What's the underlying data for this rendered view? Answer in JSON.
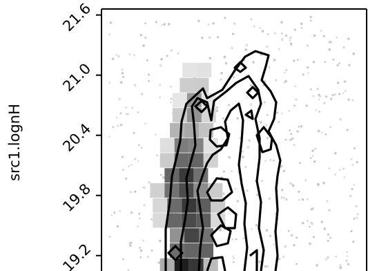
{
  "chart_data": {
    "type": "heatmap",
    "title": "",
    "xlabel": "",
    "ylabel": "src1.lognH",
    "ylim": [
      19.05,
      21.66
    ],
    "yticks": [
      19.2,
      19.8,
      20.4,
      21.0,
      21.6
    ],
    "ytick_labels": [
      "19.2",
      "19.8",
      "20.4",
      "21.0",
      "21.6"
    ],
    "grid": false,
    "colormap": "greys",
    "overlay": [
      "scatter",
      "density-contours"
    ],
    "density_profile": [
      {
        "y": 19.1,
        "x_center": 0.33,
        "x_width": 0.1,
        "density": 0.95
      },
      {
        "y": 19.25,
        "x_center": 0.34,
        "x_width": 0.11,
        "density": 0.85
      },
      {
        "y": 19.4,
        "x_center": 0.34,
        "x_width": 0.11,
        "density": 0.8
      },
      {
        "y": 19.55,
        "x_center": 0.33,
        "x_width": 0.12,
        "density": 0.75
      },
      {
        "y": 19.7,
        "x_center": 0.33,
        "x_width": 0.12,
        "density": 0.78
      },
      {
        "y": 19.85,
        "x_center": 0.32,
        "x_width": 0.12,
        "density": 0.8
      },
      {
        "y": 20.0,
        "x_center": 0.32,
        "x_width": 0.11,
        "density": 0.7
      },
      {
        "y": 20.15,
        "x_center": 0.33,
        "x_width": 0.1,
        "density": 0.6
      },
      {
        "y": 20.3,
        "x_center": 0.33,
        "x_width": 0.09,
        "density": 0.5
      },
      {
        "y": 20.45,
        "x_center": 0.34,
        "x_width": 0.08,
        "density": 0.45
      },
      {
        "y": 20.6,
        "x_center": 0.35,
        "x_width": 0.07,
        "density": 0.4
      },
      {
        "y": 20.75,
        "x_center": 0.35,
        "x_width": 0.06,
        "density": 0.35
      },
      {
        "y": 20.9,
        "x_center": 0.35,
        "x_width": 0.05,
        "density": 0.25
      },
      {
        "y": 21.05,
        "x_center": 0.36,
        "x_width": 0.04,
        "density": 0.15
      }
    ]
  }
}
